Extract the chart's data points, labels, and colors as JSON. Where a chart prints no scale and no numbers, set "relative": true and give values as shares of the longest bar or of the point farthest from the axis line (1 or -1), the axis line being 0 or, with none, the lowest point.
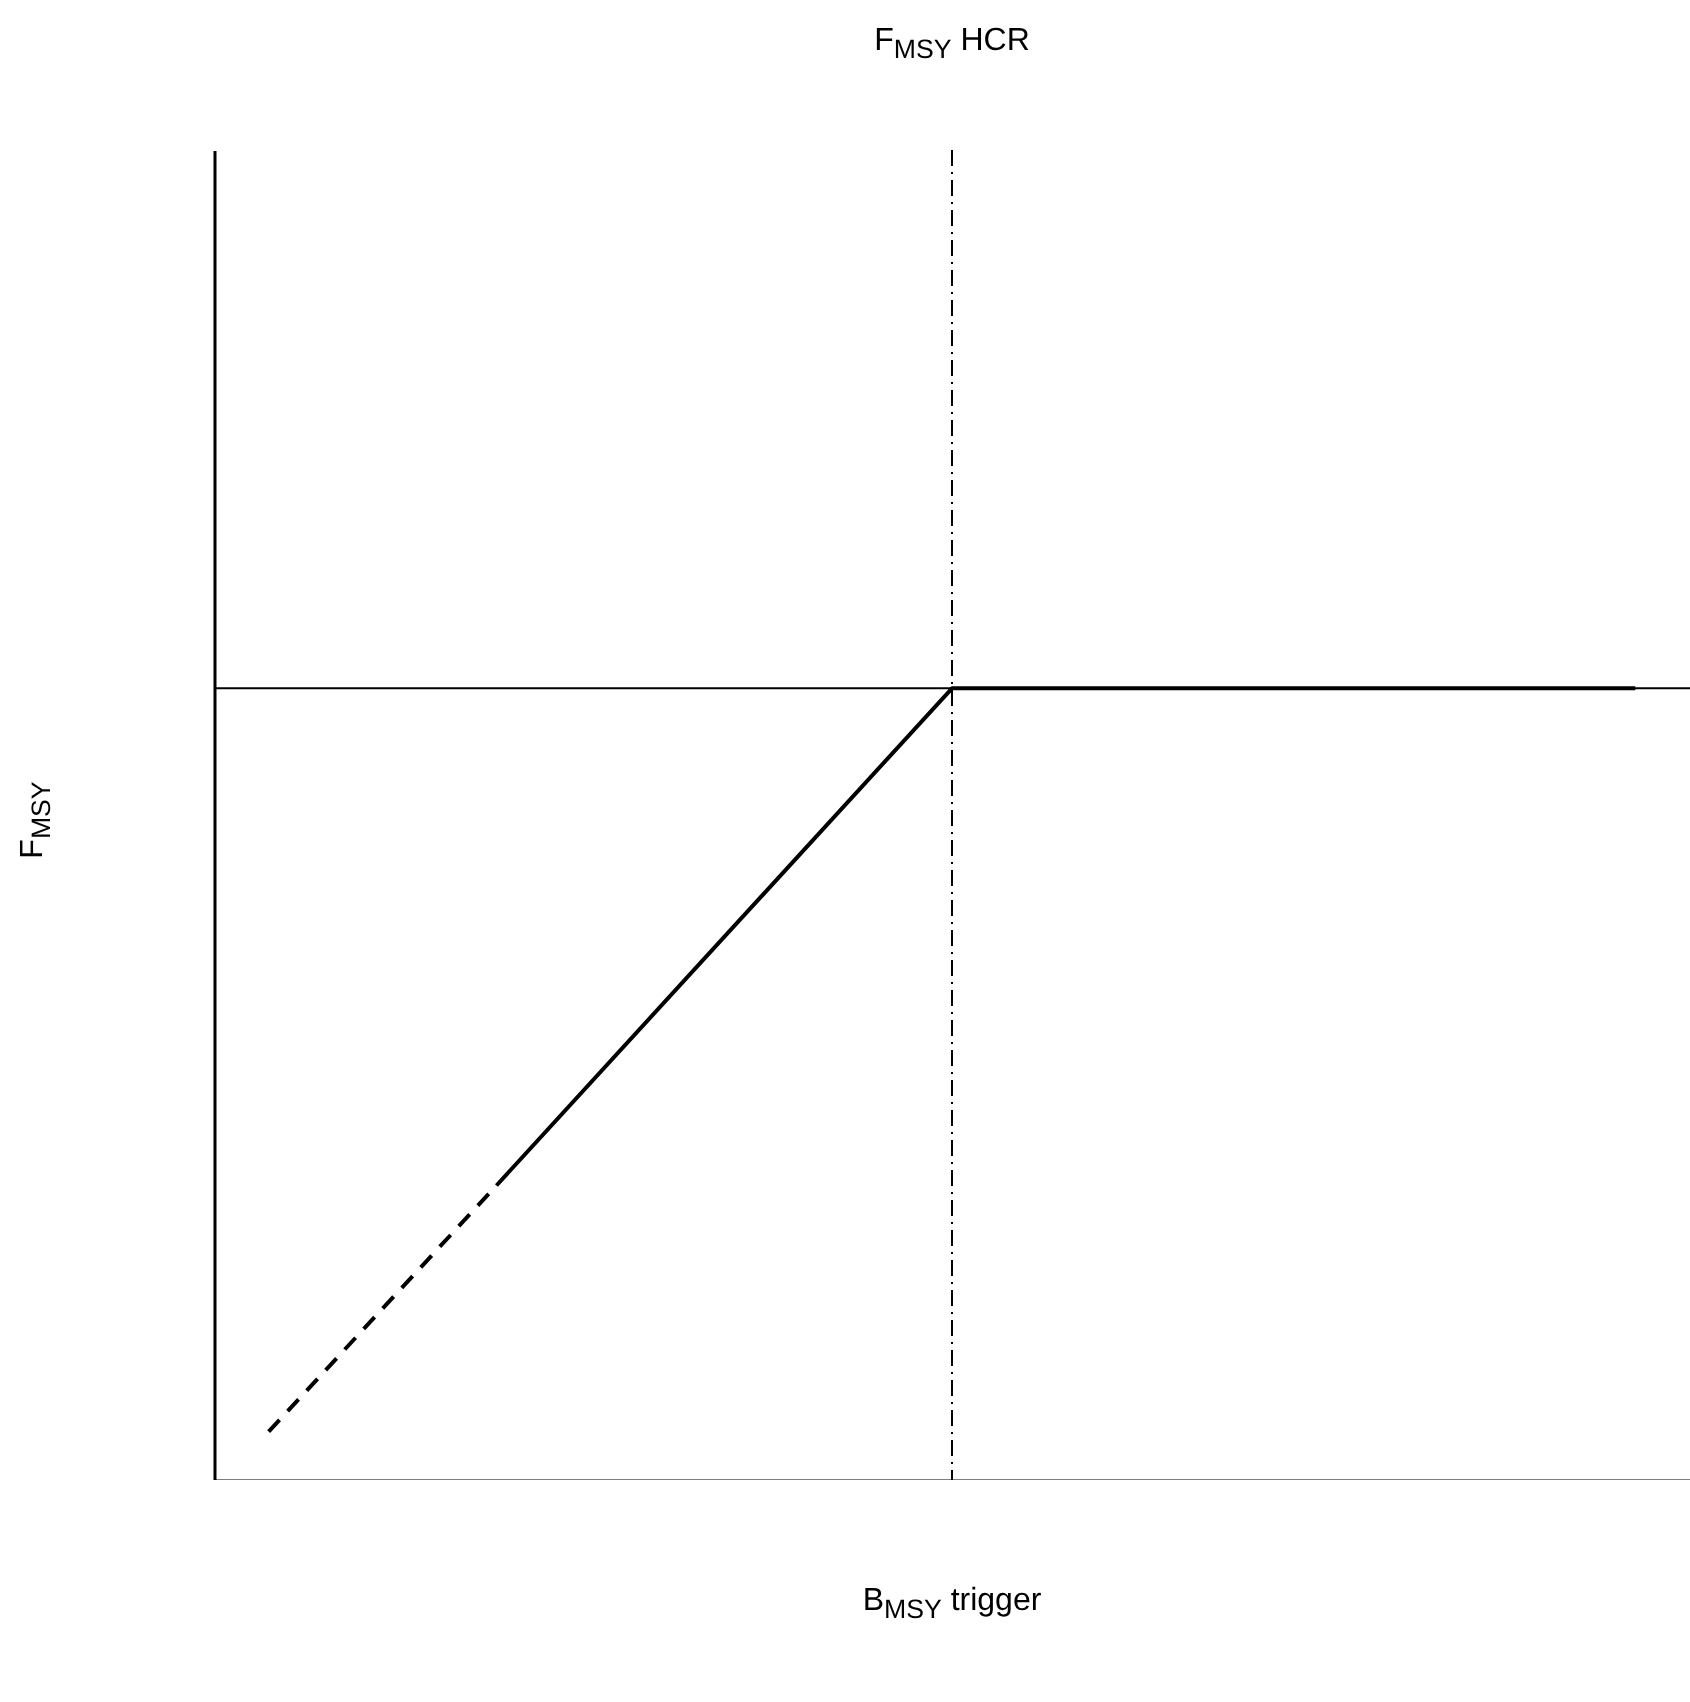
{
  "chart_data": {
    "type": "line",
    "title": "F$_{MSY}$ HCR",
    "xlabel": "B$_{MSY}$ trigger",
    "ylabel": "F$_{MSY}$",
    "relative": true,
    "categories": [
      null,
      null,
      null,
      null,
      null,
      null,
      null
    ],
    "series": [
      {
        "color": "#000000",
        "line_style": "dashed",
        "values": [
          0.061,
          0.372,
          null,
          null,
          null,
          null,
          null
        ]
      },
      {
        "color": "#000000",
        "line_style": "solid",
        "values": [
          null,
          0.372,
          0.686,
          1,
          1,
          1,
          1
        ]
      }
    ],
    "ref_lines": [
      {
        "axis": "y",
        "value": 1,
        "color": "#000000",
        "line_style": "solid"
      }
    ],
    "grid": false
  }
}
